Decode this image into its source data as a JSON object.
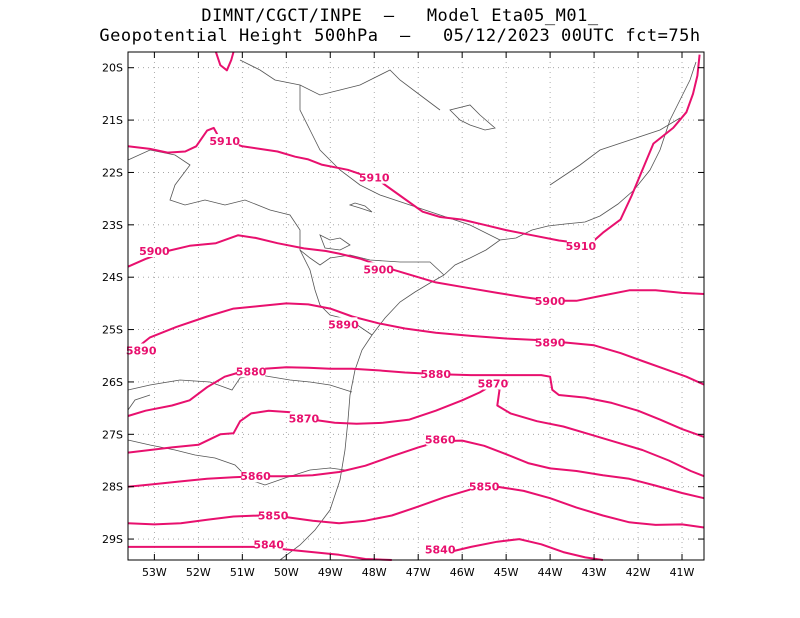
{
  "header": {
    "line1": "DIMNT/CGCT/INPE  —   Model Eta05_M01_",
    "line2": "Geopotential Height 500hPa  —   05/12/2023 00UTC fct=75h"
  },
  "axes": {
    "lat_labels": [
      "20S",
      "21S",
      "22S",
      "23S",
      "24S",
      "25S",
      "26S",
      "27S",
      "28S",
      "29S"
    ],
    "lon_labels": [
      "53W",
      "52W",
      "51W",
      "50W",
      "49W",
      "48W",
      "47W",
      "46W",
      "45W",
      "44W",
      "43W",
      "42W",
      "41W"
    ]
  },
  "map": {
    "lon_range": [
      -53.6,
      -40.5
    ],
    "lat_range": [
      -29.4,
      -19.7
    ],
    "grid": "dotted",
    "contour_color": "#e8106e",
    "contour_unit": "gpm"
  },
  "contours": [
    {
      "label": "5910",
      "labels": [
        [
          -51.4,
          -21.4
        ],
        [
          -48.0,
          -22.1
        ],
        [
          -43.3,
          -23.4
        ]
      ],
      "path": [
        [
          -53.6,
          -21.5
        ],
        [
          -53.1,
          -21.55
        ],
        [
          -52.7,
          -21.62
        ],
        [
          -52.3,
          -21.6
        ],
        [
          -52.05,
          -21.5
        ],
        [
          -51.8,
          -21.2
        ],
        [
          -51.65,
          -21.15
        ],
        [
          -51.55,
          -21.3
        ],
        [
          -51.35,
          -21.4
        ],
        [
          -51.0,
          -21.5
        ],
        [
          -50.6,
          -21.55
        ],
        [
          -50.2,
          -21.6
        ],
        [
          -49.8,
          -21.7
        ],
        [
          -49.5,
          -21.75
        ],
        [
          -49.2,
          -21.85
        ],
        [
          -48.6,
          -21.95
        ],
        [
          -47.9,
          -22.15
        ],
        [
          -47.4,
          -22.45
        ],
        [
          -46.9,
          -22.75
        ],
        [
          -46.5,
          -22.85
        ],
        [
          -46.0,
          -22.9
        ],
        [
          -45.5,
          -23.0
        ],
        [
          -45.0,
          -23.1
        ],
        [
          -44.4,
          -23.2
        ],
        [
          -43.8,
          -23.3
        ],
        [
          -43.3,
          -23.35
        ],
        [
          -43.0,
          -23.3
        ],
        [
          -42.8,
          -23.15
        ],
        [
          -42.4,
          -22.9
        ],
        [
          -42.15,
          -22.45
        ],
        [
          -41.85,
          -21.85
        ],
        [
          -41.65,
          -21.45
        ],
        [
          -41.2,
          -21.15
        ],
        [
          -40.9,
          -20.85
        ],
        [
          -40.75,
          -20.5
        ],
        [
          -40.65,
          -20.15
        ],
        [
          -40.6,
          -19.75
        ]
      ]
    },
    {
      "label": "5900",
      "labels": [
        [
          -53.0,
          -23.5
        ],
        [
          -47.9,
          -23.85
        ],
        [
          -44.0,
          -24.45
        ]
      ],
      "path": [
        [
          -53.6,
          -23.8
        ],
        [
          -53.2,
          -23.65
        ],
        [
          -52.7,
          -23.5
        ],
        [
          -52.2,
          -23.4
        ],
        [
          -51.6,
          -23.35
        ],
        [
          -51.1,
          -23.2
        ],
        [
          -50.7,
          -23.25
        ],
        [
          -50.2,
          -23.35
        ],
        [
          -49.6,
          -23.45
        ],
        [
          -49.1,
          -23.5
        ],
        [
          -48.8,
          -23.55
        ],
        [
          -48.3,
          -23.65
        ],
        [
          -47.8,
          -23.8
        ],
        [
          -47.2,
          -23.95
        ],
        [
          -46.6,
          -24.1
        ],
        [
          -45.9,
          -24.2
        ],
        [
          -45.2,
          -24.3
        ],
        [
          -44.6,
          -24.38
        ],
        [
          -44.0,
          -24.45
        ],
        [
          -43.4,
          -24.45
        ],
        [
          -42.8,
          -24.35
        ],
        [
          -42.2,
          -24.25
        ],
        [
          -41.6,
          -24.25
        ],
        [
          -41.0,
          -24.3
        ],
        [
          -40.5,
          -24.32
        ]
      ]
    },
    {
      "label": "5890",
      "labels": [
        [
          -53.3,
          -25.4
        ],
        [
          -48.7,
          -24.9
        ],
        [
          -44.0,
          -25.25
        ]
      ],
      "path": [
        [
          -53.6,
          -25.5
        ],
        [
          -53.4,
          -25.35
        ],
        [
          -53.1,
          -25.15
        ],
        [
          -52.5,
          -24.95
        ],
        [
          -51.8,
          -24.75
        ],
        [
          -51.2,
          -24.6
        ],
        [
          -50.6,
          -24.55
        ],
        [
          -50.0,
          -24.5
        ],
        [
          -49.5,
          -24.52
        ],
        [
          -49.0,
          -24.6
        ],
        [
          -48.5,
          -24.75
        ],
        [
          -47.9,
          -24.88
        ],
        [
          -47.3,
          -24.98
        ],
        [
          -46.6,
          -25.06
        ],
        [
          -45.8,
          -25.12
        ],
        [
          -45.0,
          -25.17
        ],
        [
          -44.3,
          -25.2
        ],
        [
          -43.6,
          -25.25
        ],
        [
          -43.0,
          -25.3
        ],
        [
          -42.4,
          -25.45
        ],
        [
          -41.9,
          -25.6
        ],
        [
          -41.4,
          -25.75
        ],
        [
          -40.9,
          -25.9
        ],
        [
          -40.5,
          -26.05
        ]
      ]
    },
    {
      "label": "5880",
      "labels": [
        [
          -50.8,
          -25.8
        ],
        [
          -46.6,
          -25.85
        ]
      ],
      "path": [
        [
          -53.6,
          -26.65
        ],
        [
          -53.2,
          -26.55
        ],
        [
          -52.6,
          -26.45
        ],
        [
          -52.2,
          -26.35
        ],
        [
          -51.8,
          -26.1
        ],
        [
          -51.4,
          -25.9
        ],
        [
          -51.0,
          -25.8
        ],
        [
          -50.5,
          -25.75
        ],
        [
          -50.0,
          -25.72
        ],
        [
          -49.5,
          -25.73
        ],
        [
          -49.0,
          -25.75
        ],
        [
          -48.5,
          -25.75
        ],
        [
          -47.9,
          -25.78
        ],
        [
          -47.3,
          -25.82
        ],
        [
          -46.6,
          -25.85
        ],
        [
          -45.8,
          -25.87
        ],
        [
          -45.0,
          -25.87
        ],
        [
          -44.2,
          -25.87
        ],
        [
          -44.0,
          -25.9
        ],
        [
          -43.95,
          -26.15
        ],
        [
          -43.8,
          -26.25
        ],
        [
          -43.2,
          -26.3
        ],
        [
          -42.6,
          -26.4
        ],
        [
          -42.0,
          -26.55
        ],
        [
          -41.5,
          -26.72
        ],
        [
          -41.0,
          -26.9
        ],
        [
          -40.5,
          -27.05
        ]
      ]
    },
    {
      "label": "5870",
      "labels": [
        [
          -49.6,
          -26.7
        ],
        [
          -45.3,
          -26.03
        ]
      ],
      "path": [
        [
          -53.6,
          -27.35
        ],
        [
          -53.1,
          -27.3
        ],
        [
          -52.6,
          -27.25
        ],
        [
          -52.0,
          -27.2
        ],
        [
          -51.5,
          -27.0
        ],
        [
          -51.2,
          -26.98
        ],
        [
          -51.05,
          -26.75
        ],
        [
          -50.8,
          -26.6
        ],
        [
          -50.4,
          -26.55
        ],
        [
          -49.9,
          -26.58
        ],
        [
          -49.4,
          -26.72
        ],
        [
          -48.9,
          -26.78
        ],
        [
          -48.4,
          -26.8
        ],
        [
          -47.8,
          -26.78
        ],
        [
          -47.2,
          -26.72
        ],
        [
          -46.6,
          -26.55
        ],
        [
          -46.0,
          -26.35
        ],
        [
          -45.6,
          -26.2
        ],
        [
          -45.3,
          -26.05
        ],
        [
          -45.15,
          -26.15
        ],
        [
          -45.2,
          -26.45
        ],
        [
          -44.9,
          -26.6
        ],
        [
          -44.3,
          -26.75
        ],
        [
          -43.7,
          -26.85
        ],
        [
          -43.1,
          -27.0
        ],
        [
          -42.5,
          -27.15
        ],
        [
          -41.9,
          -27.3
        ],
        [
          -41.3,
          -27.5
        ],
        [
          -40.8,
          -27.7
        ],
        [
          -40.5,
          -27.8
        ]
      ]
    },
    {
      "label": "5860",
      "labels": [
        [
          -50.7,
          -27.8
        ],
        [
          -46.5,
          -27.1
        ]
      ],
      "path": [
        [
          -53.6,
          -28.0
        ],
        [
          -53.0,
          -27.95
        ],
        [
          -52.4,
          -27.9
        ],
        [
          -51.8,
          -27.85
        ],
        [
          -51.2,
          -27.82
        ],
        [
          -50.6,
          -27.8
        ],
        [
          -50.0,
          -27.8
        ],
        [
          -49.4,
          -27.78
        ],
        [
          -48.8,
          -27.72
        ],
        [
          -48.2,
          -27.6
        ],
        [
          -47.6,
          -27.42
        ],
        [
          -47.0,
          -27.25
        ],
        [
          -46.5,
          -27.13
        ],
        [
          -46.0,
          -27.12
        ],
        [
          -45.5,
          -27.22
        ],
        [
          -45.0,
          -27.38
        ],
        [
          -44.5,
          -27.55
        ],
        [
          -44.0,
          -27.65
        ],
        [
          -43.4,
          -27.7
        ],
        [
          -42.8,
          -27.78
        ],
        [
          -42.2,
          -27.85
        ],
        [
          -41.6,
          -27.98
        ],
        [
          -41.0,
          -28.12
        ],
        [
          -40.5,
          -28.22
        ]
      ]
    },
    {
      "label": "5850",
      "labels": [
        [
          -50.3,
          -28.55
        ],
        [
          -45.5,
          -28.0
        ]
      ],
      "path": [
        [
          -53.6,
          -28.7
        ],
        [
          -53.0,
          -28.72
        ],
        [
          -52.4,
          -28.7
        ],
        [
          -51.8,
          -28.63
        ],
        [
          -51.2,
          -28.57
        ],
        [
          -50.6,
          -28.55
        ],
        [
          -50.0,
          -28.58
        ],
        [
          -49.4,
          -28.65
        ],
        [
          -48.8,
          -28.7
        ],
        [
          -48.2,
          -28.65
        ],
        [
          -47.6,
          -28.55
        ],
        [
          -47.0,
          -28.38
        ],
        [
          -46.4,
          -28.2
        ],
        [
          -45.8,
          -28.05
        ],
        [
          -45.2,
          -28.0
        ],
        [
          -44.6,
          -28.08
        ],
        [
          -44.0,
          -28.22
        ],
        [
          -43.4,
          -28.4
        ],
        [
          -42.8,
          -28.55
        ],
        [
          -42.2,
          -28.68
        ],
        [
          -41.6,
          -28.73
        ],
        [
          -41.0,
          -28.72
        ],
        [
          -40.5,
          -28.78
        ]
      ]
    },
    {
      "label": "5840",
      "labels": [
        [
          -50.4,
          -29.1
        ],
        [
          -46.5,
          -29.2
        ]
      ],
      "path": [
        [
          -53.6,
          -29.15
        ],
        [
          -53.0,
          -29.15
        ],
        [
          -52.4,
          -29.15
        ],
        [
          -51.8,
          -29.15
        ],
        [
          -51.2,
          -29.15
        ],
        [
          -50.6,
          -29.15
        ],
        [
          -50.0,
          -29.2
        ],
        [
          -49.4,
          -29.25
        ],
        [
          -48.8,
          -29.3
        ],
        [
          -48.2,
          -29.38
        ],
        [
          -47.6,
          -29.4
        ]
      ]
    },
    {
      "label": "",
      "labels": [],
      "path": [
        [
          -46.3,
          -29.25
        ],
        [
          -45.8,
          -29.15
        ],
        [
          -45.2,
          -29.05
        ],
        [
          -44.7,
          -29.0
        ],
        [
          -44.2,
          -29.1
        ],
        [
          -43.7,
          -29.25
        ],
        [
          -43.2,
          -29.35
        ],
        [
          -42.8,
          -29.4
        ]
      ]
    },
    {
      "label": "",
      "labels": [],
      "path": [
        [
          -51.6,
          -19.7
        ],
        [
          -51.5,
          -19.95
        ],
        [
          -51.35,
          -20.05
        ],
        [
          -51.25,
          -19.85
        ],
        [
          -51.2,
          -19.7
        ]
      ]
    }
  ]
}
